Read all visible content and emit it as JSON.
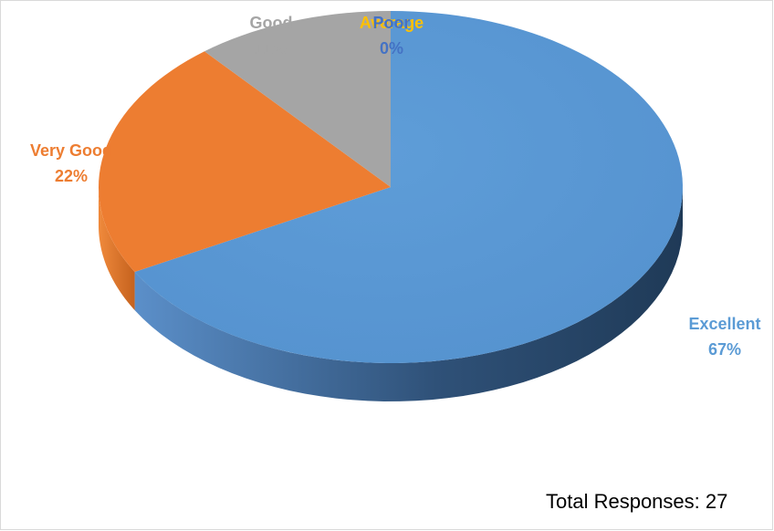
{
  "chart_data": {
    "type": "pie",
    "style": "3d",
    "categories": [
      "Excellent",
      "Very Good",
      "Good",
      "Average",
      "Poor"
    ],
    "values": [
      67,
      22,
      11,
      0,
      0
    ],
    "unit": "%",
    "labels": [
      {
        "name": "Excellent",
        "value": "67%"
      },
      {
        "name": "Very Good",
        "value": "22%"
      },
      {
        "name": "Good",
        "value": "11%"
      },
      {
        "name": "Average",
        "value": ""
      },
      {
        "name": "Poor",
        "value": "0%"
      }
    ],
    "colors": {
      "Excellent": "#5b9bd5",
      "Very Good": "#ed7d31",
      "Good": "#a5a5a5",
      "Average": "#ffc000",
      "Poor": "#4472c4"
    },
    "legend": "none"
  },
  "footer": {
    "total_responses": "Total Responses: 27"
  }
}
